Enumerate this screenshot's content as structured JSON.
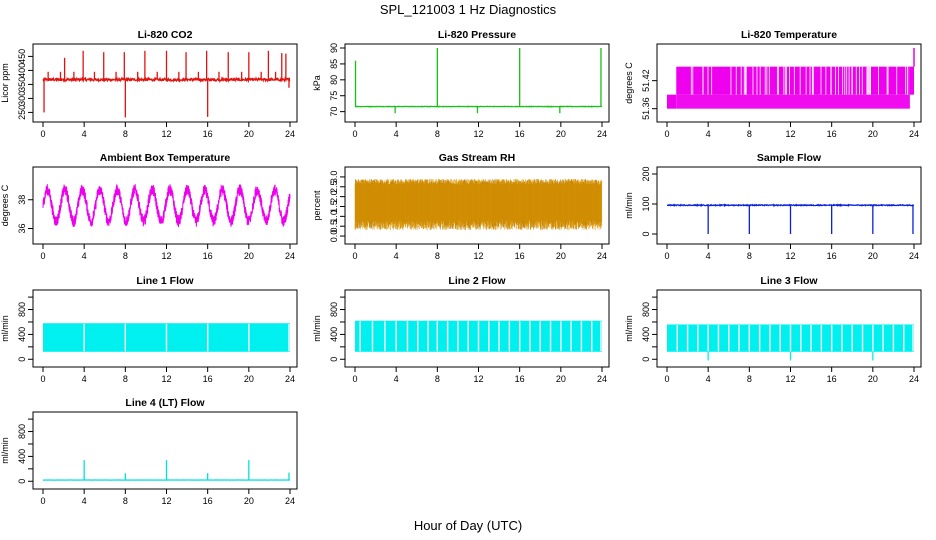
{
  "figure": {
    "title": "SPL_121003  1 Hz Diagnostics",
    "xlabel": "Hour of Day (UTC)"
  },
  "chart_data": [
    {
      "type": "line",
      "title": "Li-820 CO2",
      "ylabel": "Licor ppm",
      "color": "#e0130f",
      "xlim": [
        0,
        24
      ],
      "ylim": [
        230,
        480
      ],
      "xticks": [
        0,
        4,
        8,
        12,
        16,
        20,
        24
      ],
      "yticks": [
        250,
        300,
        350,
        400,
        450
      ],
      "baseline": 367,
      "noise": 10,
      "spikes": [
        [
          0.1,
          250
        ],
        [
          0.5,
          395
        ],
        [
          1.7,
          395
        ],
        [
          2.1,
          445
        ],
        [
          3.0,
          395
        ],
        [
          3.9,
          470
        ],
        [
          5.0,
          395
        ],
        [
          5.9,
          465
        ],
        [
          7.1,
          395
        ],
        [
          7.9,
          465
        ],
        [
          8.0,
          232
        ],
        [
          9.2,
          395
        ],
        [
          9.9,
          470
        ],
        [
          11.1,
          395
        ],
        [
          12.0,
          470
        ],
        [
          13.2,
          395
        ],
        [
          13.9,
          465
        ],
        [
          15.1,
          395
        ],
        [
          15.9,
          470
        ],
        [
          16.0,
          234
        ],
        [
          17.1,
          395
        ],
        [
          18.0,
          465
        ],
        [
          19.3,
          395
        ],
        [
          20.0,
          465
        ],
        [
          21.2,
          395
        ],
        [
          21.9,
          470
        ],
        [
          22.6,
          395
        ],
        [
          23.2,
          462
        ],
        [
          23.6,
          460
        ],
        [
          23.9,
          338
        ]
      ]
    },
    {
      "type": "line",
      "title": "Li-820 Pressure",
      "ylabel": "kPa",
      "color": "#18c018",
      "xlim": [
        0,
        24
      ],
      "ylim": [
        68,
        90
      ],
      "xticks": [
        0,
        4,
        8,
        12,
        16,
        20,
        24
      ],
      "yticks": [
        70,
        75,
        80,
        85,
        90
      ],
      "baseline": 71.6,
      "noise": 0.15,
      "spikes": [
        [
          0.05,
          86
        ],
        [
          3.9,
          69.5
        ],
        [
          8.0,
          90
        ],
        [
          11.9,
          69.5
        ],
        [
          16.0,
          90
        ],
        [
          19.9,
          69.5
        ],
        [
          23.9,
          90
        ]
      ]
    },
    {
      "type": "band-steps",
      "title": "Li-820 Temperature",
      "ylabel": "degrees C",
      "color": "#ee00ee",
      "xlim": [
        0,
        24
      ],
      "ylim": [
        51.34,
        51.49
      ],
      "xticks": [
        0,
        4,
        8,
        12,
        16,
        20,
        24
      ],
      "yticks": [
        51.36,
        51.42
      ],
      "ytick_labels": [
        "51.36",
        "51.42"
      ],
      "levels": [
        51.36,
        51.39,
        51.45
      ]
    },
    {
      "type": "line",
      "title": "Ambient Box Temperature",
      "ylabel": "degrees C",
      "color": "#ee00ee",
      "xlim": [
        0,
        24
      ],
      "ylim": [
        35.2,
        40.0
      ],
      "xticks": [
        0,
        4,
        8,
        12,
        16,
        20,
        24
      ],
      "yticks": [
        36,
        38
      ],
      "center": 37.6,
      "amp": 1.1,
      "period": 1.7,
      "noise": 0.8
    },
    {
      "type": "noise-band",
      "title": "Gas Stream RH",
      "ylabel": "percent",
      "color": "#e8a000",
      "color2": "#b87800",
      "xlim": [
        0,
        24
      ],
      "ylim": [
        -0.2,
        3.3
      ],
      "xticks": [
        0,
        4,
        8,
        12,
        16,
        20,
        24
      ],
      "yticks": [
        0.0,
        0.5,
        1.0,
        1.5,
        2.0,
        2.5,
        3.0
      ],
      "ytick_labels": [
        "0.0",
        "0.5",
        "1.0",
        "1.5",
        "2.0",
        "2.5",
        "3.0"
      ],
      "low": 0.3,
      "high": 2.9
    },
    {
      "type": "line",
      "title": "Sample Flow",
      "ylabel": "ml/min",
      "color": "#0a20d8",
      "xlim": [
        0,
        24
      ],
      "ylim": [
        -20,
        210
      ],
      "xticks": [
        0,
        4,
        8,
        12,
        16,
        20,
        24
      ],
      "yticks": [
        0,
        100,
        200
      ],
      "baseline": 96,
      "noise": 3,
      "spikes": [
        [
          4.0,
          0
        ],
        [
          8.0,
          0
        ],
        [
          12.0,
          0
        ],
        [
          16.0,
          0
        ],
        [
          20.0,
          0
        ],
        [
          23.9,
          0
        ]
      ]
    },
    {
      "type": "flow-band",
      "title": "Line 1 Flow",
      "ylabel": "ml/min",
      "color": "#00f0f0",
      "xlim": [
        0,
        24
      ],
      "ylim": [
        -60,
        1050
      ],
      "xticks": [
        0,
        4,
        8,
        12,
        16,
        20,
        24
      ],
      "yticks": [
        0,
        200,
        400,
        600,
        800,
        1000
      ],
      "ytick_labels": [
        "0",
        "",
        "400",
        "",
        "800",
        ""
      ],
      "low": 120,
      "high": 580,
      "gaps": [
        4.0,
        8.0,
        12.0,
        16.0,
        20.0,
        23.9
      ],
      "dips": []
    },
    {
      "type": "flow-band",
      "title": "Line 2 Flow",
      "ylabel": "ml/min",
      "color": "#00f0f0",
      "xlim": [
        0,
        24
      ],
      "ylim": [
        -60,
        1050
      ],
      "xticks": [
        0,
        4,
        8,
        12,
        16,
        20,
        24
      ],
      "yticks": [
        0,
        200,
        400,
        600,
        800,
        1000
      ],
      "ytick_labels": [
        "0",
        "",
        "400",
        "",
        "800",
        ""
      ],
      "low": 120,
      "high": 620,
      "gaps": [
        0.5,
        1.7,
        2.9,
        4.0,
        5.1,
        6.1,
        7.1,
        8.0,
        9.0,
        10.0,
        11.0,
        12.0,
        13.0,
        14.0,
        15.0,
        16.0,
        17.0,
        18.0,
        19.0,
        20.0,
        21.0,
        22.0,
        23.0,
        23.9
      ],
      "dips": []
    },
    {
      "type": "flow-band",
      "title": "Line 3 Flow",
      "ylabel": "ml/min",
      "color": "#00f0f0",
      "xlim": [
        0,
        24
      ],
      "ylim": [
        -60,
        1050
      ],
      "xticks": [
        0,
        4,
        8,
        12,
        16,
        20,
        24
      ],
      "yticks": [
        0,
        200,
        400,
        600,
        800,
        1000
      ],
      "ytick_labels": [
        "0",
        "",
        "400",
        "",
        "800",
        ""
      ],
      "low": 120,
      "high": 560,
      "gaps": [
        1.0,
        2.0,
        3.0,
        4.0,
        5.0,
        6.0,
        7.0,
        8.0,
        9.0,
        10.0,
        11.0,
        12.0,
        13.0,
        14.0,
        15.0,
        16.0,
        17.0,
        18.0,
        19.0,
        20.0,
        21.0,
        22.0,
        23.0,
        23.9
      ],
      "dips": [
        4.0,
        12.0,
        20.0
      ]
    },
    {
      "type": "line",
      "title": "Line 4 (LT) Flow",
      "ylabel": "ml/min",
      "color": "#00e0e0",
      "xlim": [
        0,
        24
      ],
      "ylim": [
        -60,
        1050
      ],
      "xticks": [
        0,
        4,
        8,
        12,
        16,
        20,
        24
      ],
      "yticks": [
        0,
        200,
        400,
        600,
        800,
        1000
      ],
      "ytick_labels": [
        "0",
        "",
        "400",
        "",
        "800",
        ""
      ],
      "baseline": 20,
      "noise": 3,
      "spikes": [
        [
          4.0,
          340
        ],
        [
          8.0,
          130
        ],
        [
          12.0,
          340
        ],
        [
          16.0,
          130
        ],
        [
          20.0,
          340
        ],
        [
          23.9,
          140
        ]
      ]
    }
  ]
}
